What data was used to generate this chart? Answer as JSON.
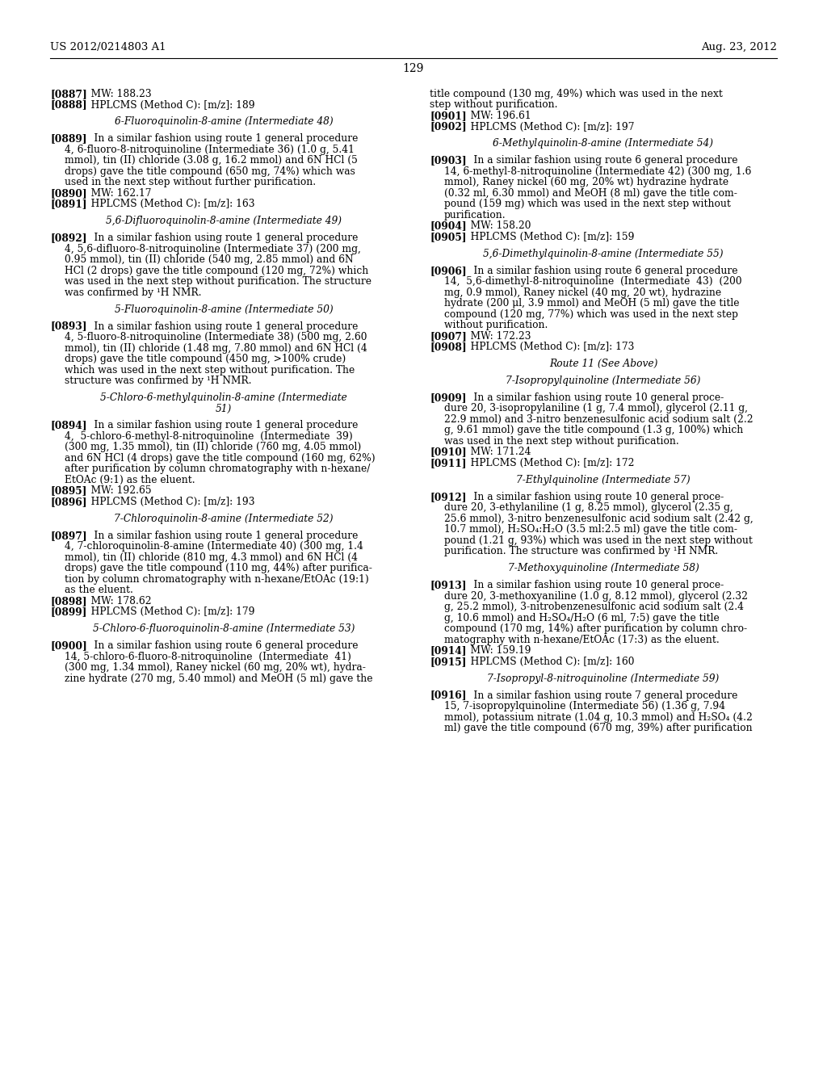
{
  "page_number": "129",
  "header_left": "US 2012/0214803 A1",
  "header_right": "Aug. 23, 2012",
  "background_color": "#ffffff",
  "text_color": "#000000",
  "left_col_lines": [
    {
      "bold": "[0887]",
      "normal": "   MW: 188.23"
    },
    {
      "bold": "[0888]",
      "normal": "   HPLCMS (Method C): [m/z]: 189"
    },
    {
      "blank": true
    },
    {
      "center": "6-Fluoroquinolin-8-amine (Intermediate 48)"
    },
    {
      "blank": true
    },
    {
      "bold": "[0889]",
      "normal": "    In a similar fashion using route 1 general procedure"
    },
    {
      "indent": "4, 6-fluoro-8-nitroquinoline (Intermediate 36) (1.0 g, 5.41"
    },
    {
      "indent": "mmol), tin (II) chloride (3.08 g, 16.2 mmol) and 6N HCl (5"
    },
    {
      "indent": "drops) gave the title compound (650 mg, 74%) which was"
    },
    {
      "indent": "used in the next step without further purification."
    },
    {
      "bold": "[0890]",
      "normal": "   MW: 162.17"
    },
    {
      "bold": "[0891]",
      "normal": "   HPLCMS (Method C): [m/z]: 163"
    },
    {
      "blank": true
    },
    {
      "center": "5,6-Difluoroquinolin-8-amine (Intermediate 49)"
    },
    {
      "blank": true
    },
    {
      "bold": "[0892]",
      "normal": "    In a similar fashion using route 1 general procedure"
    },
    {
      "indent": "4, 5,6-difluoro-8-nitroquinoline (Intermediate 37) (200 mg,"
    },
    {
      "indent": "0.95 mmol), tin (II) chloride (540 mg, 2.85 mmol) and 6N"
    },
    {
      "indent": "HCl (2 drops) gave the title compound (120 mg, 72%) which"
    },
    {
      "indent": "was used in the next step without purification. The structure"
    },
    {
      "indent": "was confirmed by ¹H NMR."
    },
    {
      "blank": true
    },
    {
      "center": "5-Fluoroquinolin-8-amine (Intermediate 50)"
    },
    {
      "blank": true
    },
    {
      "bold": "[0893]",
      "normal": "    In a similar fashion using route 1 general procedure"
    },
    {
      "indent": "4, 5-fluoro-8-nitroquinoline (Intermediate 38) (500 mg, 2.60"
    },
    {
      "indent": "mmol), tin (II) chloride (1.48 mg, 7.80 mmol) and 6N HCl (4"
    },
    {
      "indent": "drops) gave the title compound (450 mg, >100% crude)"
    },
    {
      "indent": "which was used in the next step without purification. The"
    },
    {
      "indent": "structure was confirmed by ¹H NMR."
    },
    {
      "blank": true
    },
    {
      "center": "5-Chloro-6-methylquinolin-8-amine (Intermediate"
    },
    {
      "center": "51)"
    },
    {
      "blank": true
    },
    {
      "bold": "[0894]",
      "normal": "    In a similar fashion using route 1 general procedure"
    },
    {
      "indent": "4,  5-chloro-6-methyl-8-nitroquinoline  (Intermediate  39)"
    },
    {
      "indent": "(300 mg, 1.35 mmol), tin (II) chloride (760 mg, 4.05 mmol)"
    },
    {
      "indent": "and 6N HCl (4 drops) gave the title compound (160 mg, 62%)"
    },
    {
      "indent": "after purification by column chromatography with n-hexane/"
    },
    {
      "indent": "EtOAc (9:1) as the eluent."
    },
    {
      "bold": "[0895]",
      "normal": "   MW: 192.65"
    },
    {
      "bold": "[0896]",
      "normal": "   HPLCMS (Method C): [m/z]: 193"
    },
    {
      "blank": true
    },
    {
      "center": "7-Chloroquinolin-8-amine (Intermediate 52)"
    },
    {
      "blank": true
    },
    {
      "bold": "[0897]",
      "normal": "    In a similar fashion using route 1 general procedure"
    },
    {
      "indent": "4, 7-chloroquinolin-8-amine (Intermediate 40) (300 mg, 1.4"
    },
    {
      "indent": "mmol), tin (II) chloride (810 mg, 4.3 mmol) and 6N HCl (4"
    },
    {
      "indent": "drops) gave the title compound (110 mg, 44%) after purifica-"
    },
    {
      "indent": "tion by column chromatography with n-hexane/EtOAc (19:1)"
    },
    {
      "indent": "as the eluent."
    },
    {
      "bold": "[0898]",
      "normal": "   MW: 178.62"
    },
    {
      "bold": "[0899]",
      "normal": "   HPLCMS (Method C): [m/z]: 179"
    },
    {
      "blank": true
    },
    {
      "center": "5-Chloro-6-fluoroquinolin-8-amine (Intermediate 53)"
    },
    {
      "blank": true
    },
    {
      "bold": "[0900]",
      "normal": "    In a similar fashion using route 6 general procedure"
    },
    {
      "indent": "14, 5-chloro-6-fluoro-8-nitroquinoline  (Intermediate  41)"
    },
    {
      "indent": "(300 mg, 1.34 mmol), Raney nickel (60 mg, 20% wt), hydra-"
    },
    {
      "indent": "zine hydrate (270 mg, 5.40 mmol) and MeOH (5 ml) gave the"
    }
  ],
  "right_col_lines": [
    {
      "normal": "title compound (130 mg, 49%) which was used in the next"
    },
    {
      "normal": "step without purification."
    },
    {
      "bold": "[0901]",
      "normal": "   MW: 196.61"
    },
    {
      "bold": "[0902]",
      "normal": "   HPLCMS (Method C): [m/z]: 197"
    },
    {
      "blank": true
    },
    {
      "center": "6-Methylquinolin-8-amine (Intermediate 54)"
    },
    {
      "blank": true
    },
    {
      "bold": "[0903]",
      "normal": "    In a similar fashion using route 6 general procedure"
    },
    {
      "indent": "14, 6-methyl-8-nitroquinoline (Intermediate 42) (300 mg, 1.6"
    },
    {
      "indent": "mmol), Raney nickel (60 mg, 20% wt) hydrazine hydrate"
    },
    {
      "indent": "(0.32 ml, 6.30 mmol) and MeOH (8 ml) gave the title com-"
    },
    {
      "indent": "pound (159 mg) which was used in the next step without"
    },
    {
      "indent": "purification."
    },
    {
      "bold": "[0904]",
      "normal": "   MW: 158.20"
    },
    {
      "bold": "[0905]",
      "normal": "   HPLCMS (Method C): [m/z]: 159"
    },
    {
      "blank": true
    },
    {
      "center": "5,6-Dimethylquinolin-8-amine (Intermediate 55)"
    },
    {
      "blank": true
    },
    {
      "bold": "[0906]",
      "normal": "    In a similar fashion using route 6 general procedure"
    },
    {
      "indent": "14,  5,6-dimethyl-8-nitroquinoline  (Intermediate  43)  (200"
    },
    {
      "indent": "mg, 0.9 mmol), Raney nickel (40 mg, 20 wt), hydrazine"
    },
    {
      "indent": "hydrate (200 μl, 3.9 mmol) and MeOH (5 ml) gave the title"
    },
    {
      "indent": "compound (120 mg, 77%) which was used in the next step"
    },
    {
      "indent": "without purification."
    },
    {
      "bold": "[0907]",
      "normal": "   MW: 172.23"
    },
    {
      "bold": "[0908]",
      "normal": "   HPLCMS (Method C): [m/z]: 173"
    },
    {
      "blank": true
    },
    {
      "center": "Route 11 (See Above)"
    },
    {
      "blank": true
    },
    {
      "center": "7-Isopropylquinoline (Intermediate 56)"
    },
    {
      "blank": true
    },
    {
      "bold": "[0909]",
      "normal": "    In a similar fashion using route 10 general proce-"
    },
    {
      "indent": "dure 20, 3-isopropylaniline (1 g, 7.4 mmol), glycerol (2.11 g,"
    },
    {
      "indent": "22.9 mmol) and 3-nitro benzenesulfonic acid sodium salt (2.2"
    },
    {
      "indent": "g, 9.61 mmol) gave the title compound (1.3 g, 100%) which"
    },
    {
      "indent": "was used in the next step without purification."
    },
    {
      "bold": "[0910]",
      "normal": "   MW: 171.24"
    },
    {
      "bold": "[0911]",
      "normal": "   HPLCMS (Method C): [m/z]: 172"
    },
    {
      "blank": true
    },
    {
      "center": "7-Ethylquinoline (Intermediate 57)"
    },
    {
      "blank": true
    },
    {
      "bold": "[0912]",
      "normal": "    In a similar fashion using route 10 general proce-"
    },
    {
      "indent": "dure 20, 3-ethylaniline (1 g, 8.25 mmol), glycerol (2.35 g,"
    },
    {
      "indent": "25.6 mmol), 3-nitro benzenesulfonic acid sodium salt (2.42 g,"
    },
    {
      "indent": "10.7 mmol), H₂SO₄:H₂O (3.5 ml:2.5 ml) gave the title com-"
    },
    {
      "indent": "pound (1.21 g, 93%) which was used in the next step without"
    },
    {
      "indent": "purification. The structure was confirmed by ¹H NMR."
    },
    {
      "blank": true
    },
    {
      "center": "7-Methoxyquinoline (Intermediate 58)"
    },
    {
      "blank": true
    },
    {
      "bold": "[0913]",
      "normal": "    In a similar fashion using route 10 general proce-"
    },
    {
      "indent": "dure 20, 3-methoxyaniline (1.0 g, 8.12 mmol), glycerol (2.32"
    },
    {
      "indent": "g, 25.2 mmol), 3-nitrobenzenesulfonic acid sodium salt (2.4"
    },
    {
      "indent": "g, 10.6 mmol) and H₂SO₄/H₂O (6 ml, 7:5) gave the title"
    },
    {
      "indent": "compound (170 mg, 14%) after purification by column chro-"
    },
    {
      "indent": "matography with n-hexane/EtOAc (17:3) as the eluent."
    },
    {
      "bold": "[0914]",
      "normal": "   MW: 159.19"
    },
    {
      "bold": "[0915]",
      "normal": "   HPLCMS (Method C): [m/z]: 160"
    },
    {
      "blank": true
    },
    {
      "center": "7-Isopropyl-8-nitroquinoline (Intermediate 59)"
    },
    {
      "blank": true
    },
    {
      "bold": "[0916]",
      "normal": "    In a similar fashion using route 7 general procedure"
    },
    {
      "indent": "15, 7-isopropylquinoline (Intermediate 56) (1.36 g, 7.94"
    },
    {
      "indent": "mmol), potassium nitrate (1.04 g, 10.3 mmol) and H₂SO₄ (4.2"
    },
    {
      "indent": "ml) gave the title compound (670 mg, 39%) after purification"
    }
  ]
}
